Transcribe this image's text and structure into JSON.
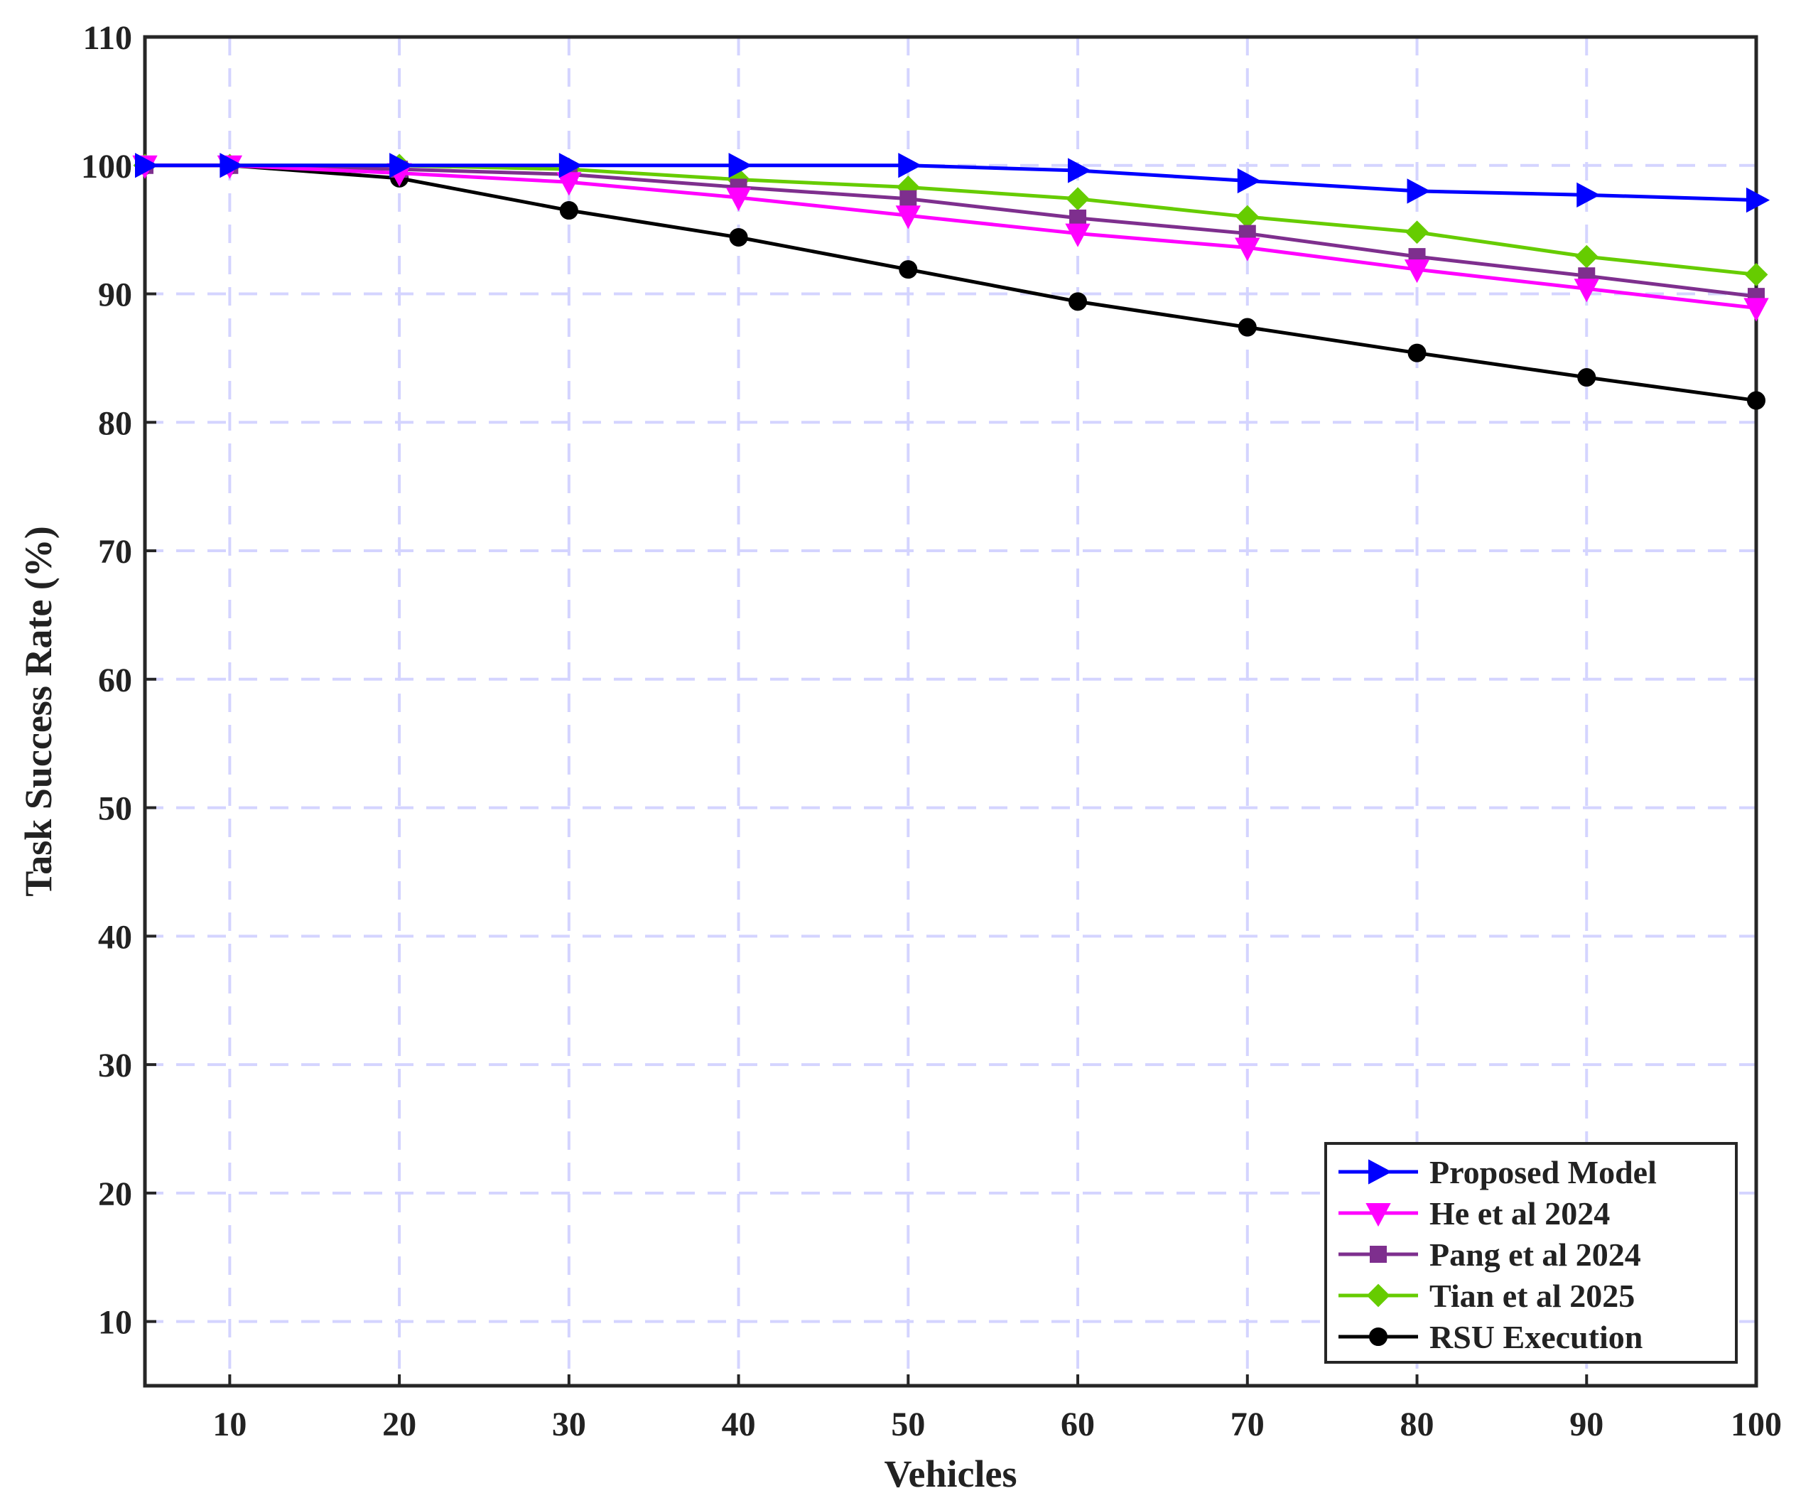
{
  "chart_data": {
    "type": "line",
    "title": "",
    "xlabel": "Vehicles",
    "ylabel": "Task Success Rate (%)",
    "xlim": [
      5,
      100
    ],
    "ylim": [
      5,
      110
    ],
    "xticks": [
      10,
      20,
      30,
      40,
      50,
      60,
      70,
      80,
      90,
      100
    ],
    "yticks": [
      10,
      20,
      30,
      40,
      50,
      60,
      70,
      80,
      90,
      100,
      110
    ],
    "grid": true,
    "legend_position": "bottom-right",
    "x": [
      5,
      10,
      20,
      30,
      40,
      50,
      60,
      70,
      80,
      90,
      100
    ],
    "series": [
      {
        "name": "Proposed Model",
        "color": "#0000ff",
        "marker": "triangle-right",
        "values": [
          100,
          100,
          100,
          100,
          100,
          100,
          99.6,
          98.8,
          98.0,
          97.7,
          97.3
        ]
      },
      {
        "name": "He et al 2024",
        "color": "#ff00ff",
        "marker": "triangle-down",
        "values": [
          100,
          100,
          99.4,
          98.7,
          97.5,
          96.1,
          94.7,
          93.6,
          91.9,
          90.4,
          88.9
        ]
      },
      {
        "name": "Pang et al 2024",
        "color": "#7e2f8e",
        "marker": "square",
        "values": [
          100,
          100,
          99.7,
          99.3,
          98.3,
          97.4,
          95.9,
          94.7,
          92.9,
          91.4,
          89.8
        ]
      },
      {
        "name": "Tian et al 2025",
        "color": "#66cc00",
        "marker": "diamond",
        "values": [
          100,
          100,
          100,
          99.7,
          98.9,
          98.3,
          97.4,
          96.0,
          94.8,
          92.9,
          91.5
        ]
      },
      {
        "name": "RSU Execution",
        "color": "#000000",
        "marker": "circle",
        "values": [
          100,
          100,
          99.0,
          96.5,
          94.4,
          91.9,
          89.4,
          87.4,
          85.4,
          83.5,
          81.7
        ]
      }
    ]
  }
}
